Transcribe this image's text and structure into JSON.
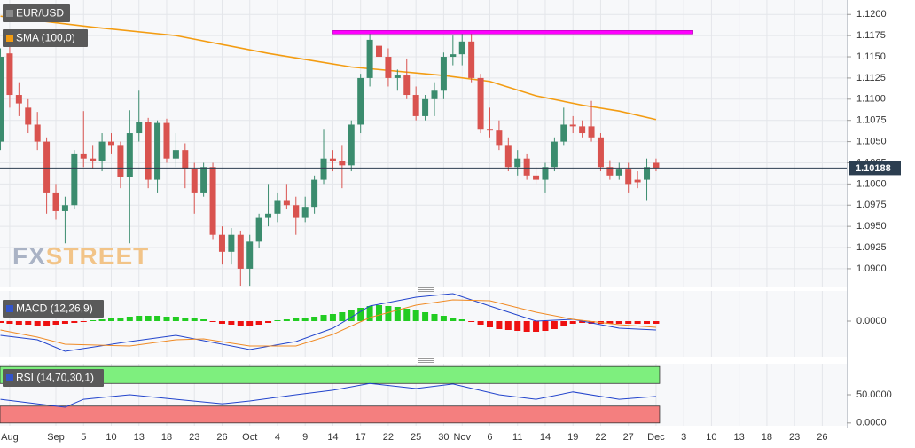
{
  "chart_data": [
    {
      "type": "candlestick",
      "title": "EUR/USD",
      "legend_swatch": "#8a8a8a",
      "up_color": "#3b8c6e",
      "down_color": "#d9534f",
      "xlim": [
        -0.05,
        91.65
      ],
      "xticks": [
        {
          "value": 1,
          "label": "Aug"
        },
        {
          "value": 6,
          "label": "Sep"
        },
        {
          "value": 9,
          "label": "5"
        },
        {
          "value": 12,
          "label": "10"
        },
        {
          "value": 15,
          "label": "13"
        },
        {
          "value": 18,
          "label": "18"
        },
        {
          "value": 21,
          "label": "23"
        },
        {
          "value": 24,
          "label": "26"
        },
        {
          "value": 27,
          "label": "Oct"
        },
        {
          "value": 30,
          "label": "4"
        },
        {
          "value": 33,
          "label": "9"
        },
        {
          "value": 36,
          "label": "14"
        },
        {
          "value": 39,
          "label": "17"
        },
        {
          "value": 42,
          "label": "22"
        },
        {
          "value": 45,
          "label": "25"
        },
        {
          "value": 48,
          "label": "30"
        },
        {
          "value": 50,
          "label": "Nov"
        },
        {
          "value": 53,
          "label": "6"
        },
        {
          "value": 56,
          "label": "11"
        },
        {
          "value": 59,
          "label": "14"
        },
        {
          "value": 62,
          "label": "19"
        },
        {
          "value": 65,
          "label": "22"
        },
        {
          "value": 68,
          "label": "27"
        },
        {
          "value": 71,
          "label": "Dec"
        },
        {
          "value": 74,
          "label": "3"
        },
        {
          "value": 77,
          "label": "10"
        },
        {
          "value": 80,
          "label": "13"
        },
        {
          "value": 83,
          "label": "18"
        },
        {
          "value": 86,
          "label": "23"
        },
        {
          "value": 89,
          "label": "26"
        }
      ],
      "ylim": [
        1.0879,
        1.1217
      ],
      "yticks": [
        {
          "value": 1.09,
          "label": "1.0900"
        },
        {
          "value": 1.0925,
          "label": "1.0925"
        },
        {
          "value": 1.095,
          "label": "1.0950"
        },
        {
          "value": 1.0975,
          "label": "1.0975"
        },
        {
          "value": 1.1,
          "label": "1.1000"
        },
        {
          "value": 1.1025,
          "label": "1.1025"
        },
        {
          "value": 1.105,
          "label": "1.1050"
        },
        {
          "value": 1.1075,
          "label": "1.1075"
        },
        {
          "value": 1.11,
          "label": "1.1100"
        },
        {
          "value": 1.1125,
          "label": "1.1125"
        },
        {
          "value": 1.115,
          "label": "1.1150"
        },
        {
          "value": 1.1175,
          "label": "1.1175"
        },
        {
          "value": 1.12,
          "label": "1.1200"
        }
      ],
      "grid": true,
      "open": [
        1.105,
        1.1154,
        1.1105,
        1.109,
        1.107,
        1.105,
        1.099,
        1.0968,
        1.0975,
        1.1035,
        1.103,
        1.1027,
        1.105,
        1.1045,
        1.1008,
        1.106,
        1.1073,
        1.1005,
        1.1072,
        1.103,
        1.104,
        1.1018,
        1.099,
        1.102,
        1.094,
        1.092,
        1.094,
        1.09,
        1.0932,
        1.096,
        1.0965,
        1.098,
        1.0975,
        1.096,
        1.0973,
        1.1005,
        1.103,
        1.1027,
        1.1022,
        1.107,
        1.1125,
        1.1163,
        1.115,
        1.1125,
        1.1128,
        1.1105,
        1.108,
        1.11,
        1.111,
        1.115,
        1.1153,
        1.1168,
        1.1125,
        1.1065,
        1.1063,
        1.1045,
        1.102,
        1.103,
        1.101,
        1.1005,
        1.102,
        1.105,
        1.107,
        1.1068,
        1.1068,
        1.1055,
        1.102,
        1.101,
        1.1017,
        1.1005,
        1.1005,
        1.1025
      ],
      "high": [
        1.116,
        1.1165,
        1.112,
        1.11,
        1.1085,
        1.1055,
        1.1,
        1.0985,
        1.104,
        1.1086,
        1.1045,
        1.106,
        1.106,
        1.105,
        1.1087,
        1.111,
        1.1078,
        1.1075,
        1.1077,
        1.106,
        1.1048,
        1.1025,
        1.1025,
        1.1025,
        1.095,
        1.0948,
        1.0945,
        1.094,
        1.0965,
        1.1,
        1.099,
        1.1,
        1.0985,
        1.0985,
        1.101,
        1.1065,
        1.104,
        1.1045,
        1.1075,
        1.113,
        1.1178,
        1.118,
        1.116,
        1.1135,
        1.1148,
        1.1115,
        1.1105,
        1.112,
        1.1155,
        1.1175,
        1.1177,
        1.1177,
        1.113,
        1.109,
        1.1075,
        1.1055,
        1.104,
        1.1035,
        1.102,
        1.1025,
        1.1055,
        1.109,
        1.108,
        1.1075,
        1.1098,
        1.106,
        1.1028,
        1.1025,
        1.1025,
        1.1015,
        1.103,
        1.103
      ],
      "low": [
        1.104,
        1.109,
        1.108,
        1.106,
        1.104,
        1.0965,
        1.0958,
        1.093,
        1.097,
        1.102,
        1.1018,
        1.1015,
        1.1035,
        1.0995,
        1.093,
        1.105,
        1.0995,
        1.099,
        1.1025,
        1.102,
        1.0995,
        1.0965,
        1.0985,
        1.0935,
        1.0905,
        1.0905,
        1.088,
        1.088,
        1.0925,
        1.095,
        1.0955,
        1.097,
        1.094,
        1.0955,
        1.0965,
        1.1,
        1.1015,
        1.0995,
        1.1015,
        1.106,
        1.1115,
        1.114,
        1.1115,
        1.111,
        1.11,
        1.1075,
        1.1075,
        1.108,
        1.11,
        1.114,
        1.114,
        1.112,
        1.106,
        1.1055,
        1.104,
        1.1015,
        1.101,
        1.1005,
        1.1,
        1.099,
        1.1015,
        1.1045,
        1.106,
        1.1055,
        1.105,
        1.1015,
        1.1005,
        1.1005,
        1.099,
        1.0995,
        1.098,
        1.1015
      ],
      "close": [
        1.115,
        1.1105,
        1.1095,
        1.107,
        1.105,
        1.099,
        1.0968,
        1.0975,
        1.1035,
        1.103,
        1.1027,
        1.105,
        1.1045,
        1.1008,
        1.106,
        1.1073,
        1.1005,
        1.1072,
        1.103,
        1.104,
        1.1018,
        1.099,
        1.102,
        1.094,
        1.092,
        1.094,
        1.09,
        1.0932,
        1.096,
        1.0965,
        1.098,
        1.0975,
        1.096,
        1.0973,
        1.1005,
        1.103,
        1.1027,
        1.1022,
        1.107,
        1.1125,
        1.117,
        1.115,
        1.1125,
        1.1128,
        1.1105,
        1.108,
        1.11,
        1.111,
        1.115,
        1.1153,
        1.1168,
        1.1125,
        1.1065,
        1.1063,
        1.1045,
        1.102,
        1.103,
        1.101,
        1.1005,
        1.102,
        1.105,
        1.107,
        1.1068,
        1.106,
        1.1055,
        1.102,
        1.101,
        1.1017,
        1.1,
        1.1002,
        1.102,
        1.1019
      ],
      "series": [
        {
          "name": "SMA (100,0)",
          "color": "#f39c12",
          "x": [
            0,
            10,
            19,
            29,
            38,
            48,
            53,
            58,
            63,
            67,
            71
          ],
          "values": [
            1.1198,
            1.1185,
            1.1175,
            1.1154,
            1.1138,
            1.1128,
            1.1121,
            1.1104,
            1.1093,
            1.1086,
            1.1076
          ]
        }
      ],
      "levels": [
        {
          "value": 1.1179,
          "x": [
            36,
            75
          ],
          "color": "#ff00ff"
        }
      ],
      "last_price": 1.10188,
      "last_price_color": "#2c3e50",
      "watermark": {
        "left": "FX",
        "right": "STREET"
      }
    },
    {
      "type": "macd",
      "title": "MACD (12,26,9)",
      "legend_swatch": "#3355cc",
      "ylim": [
        -0.004,
        0.0035
      ],
      "yticks": [
        {
          "value": 0,
          "label": "0.0000"
        }
      ],
      "pos_color": "#22cc22",
      "neg_color": "#ee1111",
      "histogram": [
        -0.0002,
        -0.0003,
        -0.0004,
        -0.0004,
        -0.0005,
        -0.0005,
        -0.0004,
        -0.0003,
        -0.0002,
        -0.0001,
        0.0001,
        0.0002,
        0.0003,
        0.0004,
        0.0005,
        0.0006,
        0.0006,
        0.0006,
        0.0005,
        0.0005,
        0.0004,
        0.0003,
        0.0002,
        -0.0001,
        -0.0003,
        -0.0004,
        -0.0005,
        -0.0005,
        -0.0004,
        -0.0002,
        0.0001,
        0.0002,
        0.0003,
        0.0004,
        0.0005,
        0.0007,
        0.0008,
        0.001,
        0.0012,
        0.0015,
        0.0017,
        0.0018,
        0.0017,
        0.0016,
        0.0014,
        0.0012,
        0.001,
        0.0008,
        0.0006,
        0.0004,
        0.0002,
        -0.0001,
        -0.0004,
        -0.0007,
        -0.0009,
        -0.001,
        -0.0011,
        -0.0012,
        -0.0012,
        -0.0011,
        -0.0009,
        -0.0006,
        -0.0003,
        -0.0002,
        -0.0003,
        -0.0003,
        -0.0003,
        -0.0003,
        -0.0003,
        -0.0003,
        -0.0003,
        -0.0003
      ],
      "series": [
        {
          "color": "#2244cc",
          "x": [
            0,
            4,
            7,
            14,
            19,
            22,
            27,
            32,
            36,
            40,
            45,
            49,
            53,
            58,
            62,
            67,
            71
          ],
          "values": [
            -0.0016,
            -0.0021,
            -0.0034,
            -0.0023,
            -0.0016,
            -0.0022,
            -0.0032,
            -0.0023,
            -0.0008,
            0.0017,
            0.0027,
            0.0031,
            0.0017,
            0.0,
            0.0002,
            -0.0008,
            -0.001
          ]
        },
        {
          "color": "#f08a24",
          "x": [
            0,
            4,
            7,
            14,
            19,
            22,
            27,
            32,
            36,
            40,
            45,
            49,
            53,
            58,
            62,
            67,
            71
          ],
          "values": [
            -0.001,
            -0.0018,
            -0.0026,
            -0.0028,
            -0.0021,
            -0.002,
            -0.0028,
            -0.0028,
            -0.0015,
            0.0004,
            0.0018,
            0.0024,
            0.0023,
            0.001,
            0.0002,
            -0.0004,
            -0.0007
          ]
        }
      ]
    },
    {
      "type": "line",
      "title": "RSI (14,70,30,1)",
      "legend_swatch": "#3355cc",
      "ylim": [
        -5,
        105
      ],
      "yticks": [
        {
          "value": 50,
          "label": "50.0000"
        },
        {
          "value": 0,
          "label": "0.0000"
        }
      ],
      "bands": [
        {
          "from": 70,
          "to": 100,
          "color": "#7eef7e"
        },
        {
          "from": 0,
          "to": 30,
          "color": "#f47f7f"
        }
      ],
      "series": [
        {
          "color": "#2244cc",
          "x": [
            0,
            6,
            7,
            9,
            14,
            19,
            24,
            27,
            32,
            36,
            40,
            45,
            49,
            54,
            58,
            62,
            67,
            71
          ],
          "values": [
            42,
            30,
            28,
            42,
            50,
            42,
            34,
            39,
            50,
            58,
            70,
            61,
            69,
            50,
            42,
            55,
            42,
            47
          ]
        }
      ]
    }
  ]
}
